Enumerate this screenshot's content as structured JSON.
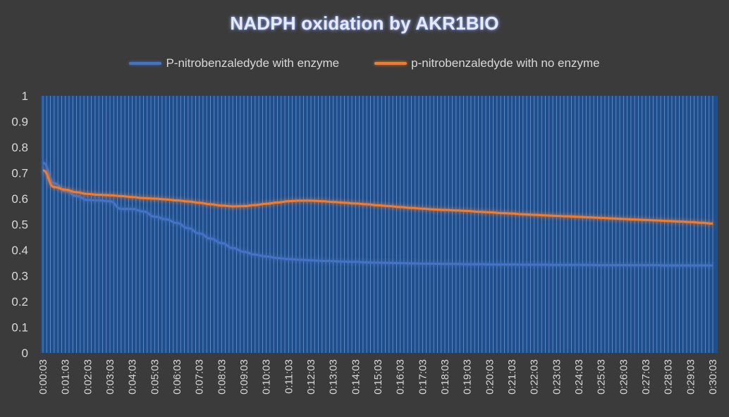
{
  "chart_data": {
    "type": "line",
    "title": "NADPH oxidation by AKR1BIO",
    "xlabel": "",
    "ylabel": "",
    "ylim": [
      0,
      1
    ],
    "yticks": [
      "0",
      "0.1",
      "0.2",
      "0.3",
      "0.4",
      "0.5",
      "0.6",
      "0.7",
      "0.8",
      "0.9",
      "1"
    ],
    "grid": "vertical gridlines at every reading",
    "legend_position": "top",
    "x_tick_labels": [
      "0:00:03",
      "0:01:03",
      "0:02:03",
      "0:03:03",
      "0:04:03",
      "0:05:03",
      "0:06:03",
      "0:07:03",
      "0:08:03",
      "0:09:03",
      "0:10:03",
      "0:11:03",
      "0:12:03",
      "0:13:03",
      "0:14:03",
      "0:15:03",
      "0:16:03",
      "0:17:03",
      "0:18:03",
      "0:19:03",
      "0:20:03",
      "0:21:03",
      "0:22:03",
      "0:23:03",
      "0:24:03",
      "0:25:03",
      "0:26:03",
      "0:27:03",
      "0:28:03",
      "0:29:03",
      "0:30:03"
    ],
    "x": [
      "0:00:03",
      "0:00:33",
      "0:01:03",
      "0:01:33",
      "0:02:03",
      "0:02:33",
      "0:03:03",
      "0:03:33",
      "0:04:03",
      "0:04:33",
      "0:05:03",
      "0:05:33",
      "0:06:03",
      "0:06:33",
      "0:07:03",
      "0:07:33",
      "0:08:03",
      "0:08:33",
      "0:09:03",
      "0:09:33",
      "0:10:03",
      "0:10:33",
      "0:11:03",
      "0:11:33",
      "0:12:03",
      "0:12:33",
      "0:13:03",
      "0:13:33",
      "0:14:03",
      "0:14:33",
      "0:15:03",
      "0:15:33",
      "0:16:03",
      "0:16:33",
      "0:17:03",
      "0:17:33",
      "0:18:03",
      "0:18:33",
      "0:19:03",
      "0:19:33",
      "0:20:03",
      "0:20:33",
      "0:21:03",
      "0:21:33",
      "0:22:03",
      "0:22:33",
      "0:23:03",
      "0:23:33",
      "0:24:03",
      "0:24:33",
      "0:25:03",
      "0:25:33",
      "0:26:03",
      "0:26:33",
      "0:27:03",
      "0:27:33",
      "0:28:03",
      "0:28:33",
      "0:29:03",
      "0:29:33",
      "0:30:03"
    ],
    "series": [
      {
        "name": "P-nitrobenzaledyde with enzyme",
        "color": "#4472c4",
        "values": [
          0.74,
          0.66,
          0.63,
          0.61,
          0.595,
          0.593,
          0.59,
          0.56,
          0.56,
          0.55,
          0.53,
          0.52,
          0.505,
          0.485,
          0.465,
          0.445,
          0.427,
          0.408,
          0.393,
          0.382,
          0.375,
          0.369,
          0.365,
          0.362,
          0.36,
          0.358,
          0.357,
          0.355,
          0.354,
          0.352,
          0.351,
          0.35,
          0.349,
          0.348,
          0.347,
          0.347,
          0.346,
          0.346,
          0.345,
          0.345,
          0.344,
          0.344,
          0.344,
          0.343,
          0.343,
          0.343,
          0.342,
          0.342,
          0.342,
          0.342,
          0.341,
          0.341,
          0.341,
          0.341,
          0.341,
          0.341,
          0.34,
          0.34,
          0.34,
          0.34,
          0.34
        ]
      },
      {
        "name": "p-nitrobenzaledyde with no enzyme",
        "color": "#ed7d31",
        "values": [
          0.71,
          0.645,
          0.635,
          0.625,
          0.618,
          0.615,
          0.613,
          0.61,
          0.606,
          0.602,
          0.6,
          0.597,
          0.593,
          0.589,
          0.584,
          0.578,
          0.573,
          0.57,
          0.571,
          0.575,
          0.58,
          0.585,
          0.59,
          0.592,
          0.592,
          0.59,
          0.587,
          0.584,
          0.581,
          0.578,
          0.574,
          0.571,
          0.567,
          0.564,
          0.561,
          0.558,
          0.556,
          0.554,
          0.552,
          0.549,
          0.547,
          0.544,
          0.542,
          0.539,
          0.537,
          0.535,
          0.533,
          0.531,
          0.529,
          0.527,
          0.525,
          0.523,
          0.521,
          0.519,
          0.517,
          0.515,
          0.513,
          0.511,
          0.509,
          0.506,
          0.503
        ]
      }
    ]
  },
  "colors": {
    "background": "#3b3b3b",
    "plot_area": "#1f4e8c",
    "gridline": "#6f96cf",
    "text": "#d9d9d9"
  }
}
